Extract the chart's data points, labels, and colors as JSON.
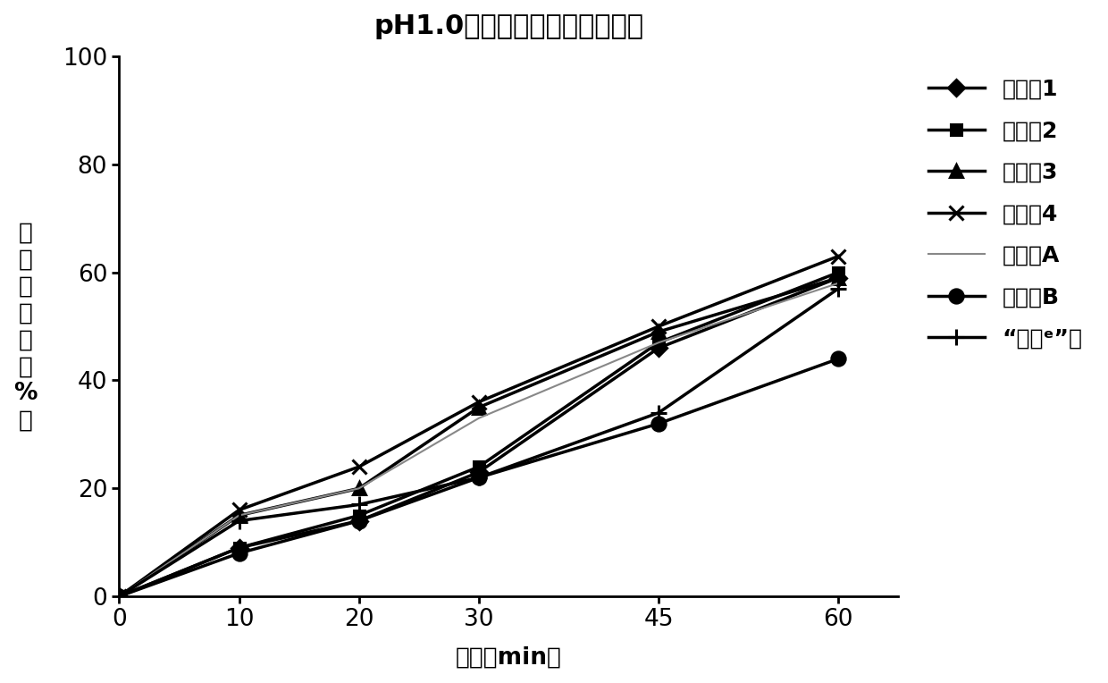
{
  "title": "pH1.0盐酸溶液中溶出曲线对比",
  "xlabel": "时间（min）",
  "ylabel_chars": [
    "累",
    "积",
    "溶",
    "出",
    "度",
    "（",
    "%",
    "）"
  ],
  "xlim": [
    0,
    65
  ],
  "ylim": [
    0,
    100
  ],
  "xticks": [
    0,
    10,
    20,
    30,
    45,
    60
  ],
  "yticks": [
    0,
    20,
    40,
    60,
    80,
    100
  ],
  "series": [
    {
      "label": "实施例1",
      "x": [
        0,
        10,
        20,
        30,
        45,
        60
      ],
      "y": [
        0,
        9,
        14,
        23,
        46,
        59
      ],
      "marker": "D",
      "markersize": 9,
      "linewidth": 2.5,
      "color": "#000000",
      "linestyle": "solid"
    },
    {
      "label": "实施例2",
      "x": [
        0,
        10,
        20,
        30,
        45,
        60
      ],
      "y": [
        0,
        9,
        15,
        24,
        47,
        60
      ],
      "marker": "s",
      "markersize": 9,
      "linewidth": 2.5,
      "color": "#000000",
      "linestyle": "solid"
    },
    {
      "label": "实施例3",
      "x": [
        0,
        10,
        20,
        30,
        45,
        60
      ],
      "y": [
        0,
        15,
        20,
        35,
        49,
        59
      ],
      "marker": "^",
      "markersize": 10,
      "linewidth": 2.5,
      "color": "#000000",
      "linestyle": "solid"
    },
    {
      "label": "实施例4",
      "x": [
        0,
        10,
        20,
        30,
        45,
        60
      ],
      "y": [
        0,
        16,
        24,
        36,
        50,
        63
      ],
      "marker": "x",
      "markersize": 11,
      "linewidth": 2.5,
      "color": "#000000",
      "linestyle": "solid"
    },
    {
      "label": "试验例A",
      "x": [
        0,
        10,
        20,
        30,
        45,
        60
      ],
      "y": [
        0,
        15,
        20,
        33,
        47,
        58
      ],
      "marker": null,
      "markersize": 0,
      "linewidth": 1.5,
      "color": "#888888",
      "linestyle": "solid"
    },
    {
      "label": "试验例B",
      "x": [
        0,
        10,
        20,
        30,
        45,
        60
      ],
      "y": [
        0,
        8,
        14,
        22,
        32,
        44
      ],
      "marker": "o",
      "markersize": 11,
      "linewidth": 2.5,
      "color": "#000000",
      "linestyle": "solid"
    },
    {
      "label": "“泽珂ᵉ”片",
      "x": [
        0,
        10,
        20,
        30,
        45,
        60
      ],
      "y": [
        0,
        14,
        17,
        22,
        34,
        57
      ],
      "marker": "+",
      "markersize": 13,
      "linewidth": 2.5,
      "color": "#000000",
      "linestyle": "solid"
    }
  ],
  "background_color": "#ffffff",
  "title_fontsize": 22,
  "label_fontsize": 19,
  "tick_fontsize": 19,
  "legend_fontsize": 18
}
